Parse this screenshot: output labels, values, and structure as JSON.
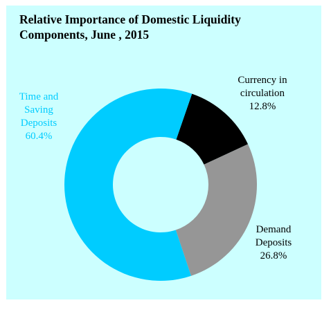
{
  "chart_data": {
    "type": "pie",
    "title": "Relative Importance of Domestic Liquidity Components, June , 2015",
    "title_lines": [
      "Relative Importance of Domestic Liquidity",
      "Components, June , 2015"
    ],
    "donut": true,
    "background": "#CCFFFF",
    "slices": [
      {
        "name": "Currency in circulation",
        "label_lines": [
          "Currency in",
          "circulation"
        ],
        "value": 12.8,
        "value_label": "12.8%",
        "color": "#000000",
        "label_color": "#000000"
      },
      {
        "name": "Demand Deposits",
        "label_lines": [
          "Demand",
          "Deposits"
        ],
        "value": 26.8,
        "value_label": "26.8%",
        "color": "#969696",
        "label_color": "#000000"
      },
      {
        "name": "Time and Saving Deposits",
        "label_lines": [
          "Time and",
          "Saving",
          "Deposits"
        ],
        "value": 60.4,
        "value_label": "60.4%",
        "color": "#00CCFF",
        "label_color": "#00CCFF"
      }
    ]
  }
}
